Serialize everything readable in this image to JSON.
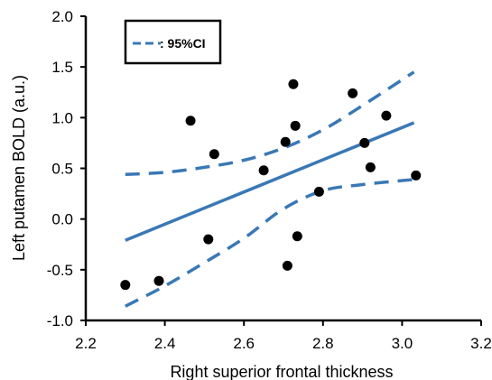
{
  "chart_data": {
    "type": "scatter",
    "xlabel": "Right superior frontal thickness",
    "ylabel": "Left putamen BOLD (a.u.)",
    "xlim": [
      2.2,
      3.2
    ],
    "ylim": [
      -1.0,
      2.0
    ],
    "xticks": [
      "2.2",
      "2.4",
      "2.6",
      "2.8",
      "3.0",
      "3.2"
    ],
    "yticks": [
      "2.0",
      "1.5",
      "1.0",
      "0.5",
      "0.0",
      "-0.5",
      "-1.0"
    ],
    "grid": false,
    "legend": {
      "position": "top-left",
      "label": ": 95%CI"
    },
    "series": [
      {
        "kind": "points",
        "color": "#000000",
        "points": [
          [
            2.3,
            -0.65
          ],
          [
            2.385,
            -0.61
          ],
          [
            2.465,
            0.97
          ],
          [
            2.51,
            -0.2
          ],
          [
            2.525,
            0.64
          ],
          [
            2.65,
            0.48
          ],
          [
            2.705,
            0.76
          ],
          [
            2.71,
            -0.46
          ],
          [
            2.725,
            1.33
          ],
          [
            2.73,
            0.92
          ],
          [
            2.735,
            -0.17
          ],
          [
            2.79,
            0.27
          ],
          [
            2.875,
            1.24
          ],
          [
            2.905,
            0.75
          ],
          [
            2.92,
            0.51
          ],
          [
            2.96,
            1.02
          ],
          [
            3.035,
            0.43
          ]
        ]
      },
      {
        "kind": "fit-line",
        "color": "#3a78b5",
        "points": [
          [
            2.3,
            -0.21
          ],
          [
            3.03,
            0.95
          ]
        ]
      },
      {
        "kind": "ci-upper",
        "color": "#3a78b5",
        "points": [
          [
            2.3,
            0.44
          ],
          [
            2.4,
            0.46
          ],
          [
            2.5,
            0.51
          ],
          [
            2.6,
            0.58
          ],
          [
            2.7,
            0.7
          ],
          [
            2.8,
            0.88
          ],
          [
            2.9,
            1.12
          ],
          [
            3.03,
            1.45
          ]
        ]
      },
      {
        "kind": "ci-lower",
        "color": "#3a78b5",
        "points": [
          [
            2.3,
            -0.86
          ],
          [
            2.4,
            -0.66
          ],
          [
            2.5,
            -0.43
          ],
          [
            2.6,
            -0.19
          ],
          [
            2.7,
            0.1
          ],
          [
            2.8,
            0.28
          ],
          [
            2.9,
            0.34
          ],
          [
            3.03,
            0.39
          ]
        ]
      }
    ]
  }
}
